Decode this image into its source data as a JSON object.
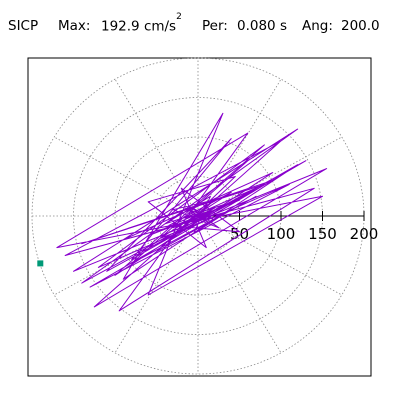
{
  "header": {
    "station": "SICP",
    "max_label": "Max:",
    "max_value": "192.9 cm/s",
    "max_unit_exp": "2",
    "per_label": "Per:",
    "per_value": "0.080 s",
    "ang_label": "Ang:",
    "ang_value": "200.0"
  },
  "chart_data": {
    "type": "polar-orbit",
    "title": "",
    "radial_ticks": [
      50,
      100,
      150,
      200
    ],
    "radial_range": [
      0,
      200
    ],
    "angular_grid_step_deg": 30,
    "grid": true,
    "colors": {
      "trace": "#8800cc",
      "grid": "#888888",
      "marker": "#009977"
    },
    "series": [
      {
        "x": [
          5,
          -8,
          12,
          -15,
          20,
          -10,
          25,
          -30,
          18,
          -22,
          30,
          -40,
          15,
          -5,
          35,
          -45,
          40,
          -35,
          50,
          -20,
          10,
          -60,
          45,
          -50,
          70,
          -80,
          60,
          -90,
          90,
          -100,
          80,
          -120,
          110,
          -130,
          130,
          -140,
          120,
          -150,
          155,
          -125,
          100,
          -160,
          140,
          -95,
          60,
          -170,
          150,
          -60,
          30,
          -90,
          120,
          -80,
          40,
          -110,
          90,
          -140,
          80,
          -60,
          50,
          -30,
          20,
          -10,
          15,
          -20,
          8,
          -5,
          3
        ],
        "y": [
          -3,
          6,
          -8,
          10,
          -5,
          12,
          -15,
          8,
          20,
          -18,
          14,
          -10,
          25,
          -22,
          5,
          -28,
          30,
          -12,
          -20,
          35,
          -40,
          18,
          50,
          -45,
          25,
          -60,
          70,
          -30,
          55,
          -75,
          90,
          -65,
          40,
          -90,
          70,
          -85,
          110,
          -70,
          60,
          -115,
          95,
          -50,
          35,
          -120,
          105,
          -40,
          25,
          -100,
          130,
          -80,
          65,
          -55,
          98,
          -70,
          45,
          -35,
          40,
          -25,
          20,
          -15,
          10,
          -8,
          5,
          -3,
          2,
          -1,
          0
        ]
      }
    ],
    "end_marker": {
      "x": -190,
      "y": -60
    }
  }
}
